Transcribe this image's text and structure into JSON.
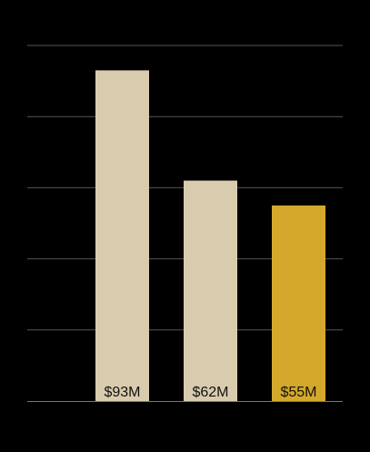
{
  "chart_data": {
    "type": "bar",
    "categories": [
      "",
      "",
      ""
    ],
    "values": [
      93,
      62,
      55
    ],
    "value_labels": [
      "$93M",
      "$62M",
      "$55M"
    ],
    "title": "",
    "xlabel": "",
    "ylabel": "",
    "ylim": [
      0,
      100
    ],
    "grid": true,
    "legend": "none",
    "colors": {
      "background": "#000000",
      "bar": "#d9ccae",
      "highlight": "#d4a82a",
      "grid": "#555555",
      "baseline": "#777777",
      "label": "#111111"
    },
    "highlight_index": 2
  }
}
